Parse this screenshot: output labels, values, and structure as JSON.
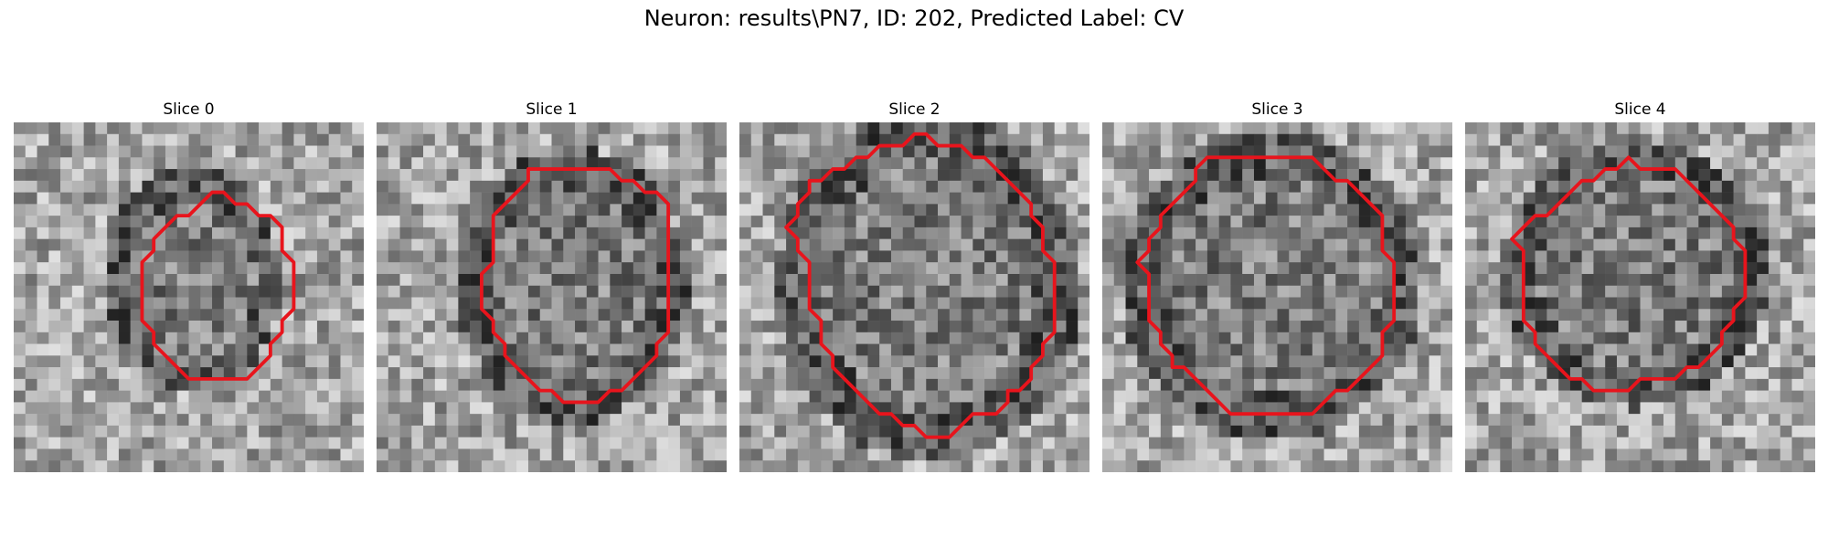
{
  "figure": {
    "title": "Neuron: results\\PN7, ID: 202, Predicted Label: CV",
    "contour_color": "#e8141c"
  },
  "panels": [
    {
      "title": "Slice 0",
      "contour": [
        [
          17,
          6
        ],
        [
          18,
          6
        ],
        [
          19,
          7
        ],
        [
          20,
          7
        ],
        [
          21,
          8
        ],
        [
          22,
          8
        ],
        [
          23,
          9
        ],
        [
          23,
          10
        ],
        [
          23,
          11
        ],
        [
          24,
          12
        ],
        [
          24,
          13
        ],
        [
          24,
          14
        ],
        [
          24,
          15
        ],
        [
          24,
          16
        ],
        [
          23,
          17
        ],
        [
          23,
          18
        ],
        [
          22,
          19
        ],
        [
          22,
          20
        ],
        [
          21,
          21
        ],
        [
          20,
          22
        ],
        [
          19,
          22
        ],
        [
          18,
          22
        ],
        [
          17,
          22
        ],
        [
          16,
          22
        ],
        [
          15,
          22
        ],
        [
          14,
          21
        ],
        [
          13,
          20
        ],
        [
          12,
          19
        ],
        [
          12,
          18
        ],
        [
          11,
          17
        ],
        [
          11,
          16
        ],
        [
          11,
          15
        ],
        [
          11,
          14
        ],
        [
          11,
          13
        ],
        [
          11,
          12
        ],
        [
          12,
          11
        ],
        [
          12,
          10
        ],
        [
          13,
          9
        ],
        [
          14,
          8
        ],
        [
          15,
          8
        ],
        [
          16,
          7
        ]
      ]
    },
    {
      "title": "Slice 1",
      "contour": [
        [
          13,
          4
        ],
        [
          14,
          4
        ],
        [
          15,
          4
        ],
        [
          16,
          4
        ],
        [
          17,
          4
        ],
        [
          18,
          4
        ],
        [
          19,
          4
        ],
        [
          20,
          4
        ],
        [
          21,
          5
        ],
        [
          22,
          5
        ],
        [
          23,
          6
        ],
        [
          24,
          6
        ],
        [
          25,
          7
        ],
        [
          25,
          8
        ],
        [
          25,
          9
        ],
        [
          25,
          10
        ],
        [
          25,
          11
        ],
        [
          25,
          12
        ],
        [
          25,
          13
        ],
        [
          25,
          14
        ],
        [
          25,
          15
        ],
        [
          25,
          16
        ],
        [
          25,
          17
        ],
        [
          25,
          18
        ],
        [
          24,
          19
        ],
        [
          24,
          20
        ],
        [
          23,
          21
        ],
        [
          22,
          22
        ],
        [
          21,
          23
        ],
        [
          20,
          23
        ],
        [
          19,
          24
        ],
        [
          18,
          24
        ],
        [
          17,
          24
        ],
        [
          16,
          24
        ],
        [
          15,
          23
        ],
        [
          14,
          23
        ],
        [
          13,
          22
        ],
        [
          12,
          21
        ],
        [
          11,
          20
        ],
        [
          11,
          19
        ],
        [
          10,
          18
        ],
        [
          10,
          17
        ],
        [
          9,
          16
        ],
        [
          9,
          15
        ],
        [
          9,
          14
        ],
        [
          9,
          13
        ],
        [
          10,
          12
        ],
        [
          10,
          11
        ],
        [
          10,
          10
        ],
        [
          10,
          9
        ],
        [
          10,
          8
        ],
        [
          11,
          7
        ],
        [
          12,
          6
        ],
        [
          13,
          5
        ]
      ]
    },
    {
      "title": "Slice 2",
      "contour": [
        [
          15,
          1
        ],
        [
          16,
          1
        ],
        [
          17,
          2
        ],
        [
          18,
          2
        ],
        [
          19,
          2
        ],
        [
          20,
          3
        ],
        [
          21,
          3
        ],
        [
          22,
          4
        ],
        [
          23,
          5
        ],
        [
          24,
          6
        ],
        [
          25,
          7
        ],
        [
          25,
          8
        ],
        [
          26,
          9
        ],
        [
          26,
          10
        ],
        [
          26,
          11
        ],
        [
          27,
          12
        ],
        [
          27,
          13
        ],
        [
          27,
          14
        ],
        [
          27,
          15
        ],
        [
          27,
          16
        ],
        [
          27,
          17
        ],
        [
          27,
          18
        ],
        [
          26,
          19
        ],
        [
          26,
          20
        ],
        [
          25,
          21
        ],
        [
          25,
          22
        ],
        [
          24,
          23
        ],
        [
          23,
          23
        ],
        [
          23,
          24
        ],
        [
          22,
          25
        ],
        [
          21,
          25
        ],
        [
          20,
          25
        ],
        [
          19,
          26
        ],
        [
          18,
          27
        ],
        [
          17,
          27
        ],
        [
          16,
          27
        ],
        [
          15,
          26
        ],
        [
          14,
          26
        ],
        [
          13,
          25
        ],
        [
          12,
          25
        ],
        [
          11,
          24
        ],
        [
          10,
          23
        ],
        [
          9,
          22
        ],
        [
          8,
          21
        ],
        [
          8,
          20
        ],
        [
          7,
          19
        ],
        [
          7,
          18
        ],
        [
          7,
          17
        ],
        [
          6,
          16
        ],
        [
          6,
          15
        ],
        [
          6,
          14
        ],
        [
          6,
          13
        ],
        [
          6,
          12
        ],
        [
          5,
          11
        ],
        [
          5,
          10
        ],
        [
          4,
          9
        ],
        [
          5,
          8
        ],
        [
          5,
          7
        ],
        [
          6,
          6
        ],
        [
          6,
          5
        ],
        [
          7,
          5
        ],
        [
          8,
          4
        ],
        [
          9,
          4
        ],
        [
          10,
          3
        ],
        [
          11,
          3
        ],
        [
          12,
          2
        ],
        [
          13,
          2
        ],
        [
          14,
          2
        ]
      ]
    },
    {
      "title": "Slice 3",
      "contour": [
        [
          9,
          3
        ],
        [
          10,
          3
        ],
        [
          11,
          3
        ],
        [
          12,
          3
        ],
        [
          13,
          3
        ],
        [
          14,
          3
        ],
        [
          15,
          3
        ],
        [
          16,
          3
        ],
        [
          17,
          3
        ],
        [
          18,
          3
        ],
        [
          19,
          4
        ],
        [
          20,
          5
        ],
        [
          21,
          5
        ],
        [
          22,
          6
        ],
        [
          23,
          7
        ],
        [
          24,
          8
        ],
        [
          24,
          9
        ],
        [
          24,
          10
        ],
        [
          24,
          11
        ],
        [
          25,
          12
        ],
        [
          25,
          13
        ],
        [
          25,
          14
        ],
        [
          25,
          15
        ],
        [
          25,
          16
        ],
        [
          25,
          17
        ],
        [
          24,
          18
        ],
        [
          24,
          19
        ],
        [
          24,
          20
        ],
        [
          23,
          21
        ],
        [
          22,
          22
        ],
        [
          21,
          23
        ],
        [
          20,
          23
        ],
        [
          19,
          24
        ],
        [
          18,
          25
        ],
        [
          17,
          25
        ],
        [
          16,
          25
        ],
        [
          15,
          25
        ],
        [
          14,
          25
        ],
        [
          13,
          25
        ],
        [
          12,
          25
        ],
        [
          11,
          25
        ],
        [
          10,
          24
        ],
        [
          9,
          23
        ],
        [
          8,
          22
        ],
        [
          7,
          21
        ],
        [
          6,
          21
        ],
        [
          6,
          20
        ],
        [
          5,
          19
        ],
        [
          5,
          18
        ],
        [
          4,
          17
        ],
        [
          4,
          16
        ],
        [
          4,
          15
        ],
        [
          4,
          14
        ],
        [
          4,
          13
        ],
        [
          3,
          12
        ],
        [
          4,
          11
        ],
        [
          4,
          10
        ],
        [
          5,
          9
        ],
        [
          5,
          8
        ],
        [
          6,
          7
        ],
        [
          7,
          6
        ],
        [
          8,
          5
        ],
        [
          8,
          4
        ]
      ]
    },
    {
      "title": "Slice 4",
      "contour": [
        [
          15,
          4
        ],
        [
          16,
          4
        ],
        [
          17,
          4
        ],
        [
          18,
          4
        ],
        [
          19,
          5
        ],
        [
          20,
          6
        ],
        [
          21,
          7
        ],
        [
          22,
          8
        ],
        [
          23,
          9
        ],
        [
          23,
          10
        ],
        [
          24,
          11
        ],
        [
          24,
          12
        ],
        [
          24,
          13
        ],
        [
          24,
          14
        ],
        [
          24,
          15
        ],
        [
          23,
          16
        ],
        [
          23,
          17
        ],
        [
          22,
          18
        ],
        [
          22,
          19
        ],
        [
          21,
          20
        ],
        [
          20,
          21
        ],
        [
          19,
          21
        ],
        [
          18,
          22
        ],
        [
          17,
          22
        ],
        [
          16,
          22
        ],
        [
          15,
          22
        ],
        [
          14,
          23
        ],
        [
          13,
          23
        ],
        [
          12,
          23
        ],
        [
          11,
          23
        ],
        [
          10,
          22
        ],
        [
          9,
          22
        ],
        [
          8,
          21
        ],
        [
          7,
          20
        ],
        [
          6,
          19
        ],
        [
          6,
          18
        ],
        [
          5,
          17
        ],
        [
          5,
          16
        ],
        [
          5,
          15
        ],
        [
          5,
          14
        ],
        [
          5,
          13
        ],
        [
          5,
          12
        ],
        [
          5,
          11
        ],
        [
          4,
          10
        ],
        [
          5,
          9
        ],
        [
          6,
          8
        ],
        [
          7,
          8
        ],
        [
          8,
          7
        ],
        [
          9,
          6
        ],
        [
          10,
          5
        ],
        [
          11,
          5
        ],
        [
          12,
          4
        ],
        [
          13,
          4
        ],
        [
          14,
          3
        ]
      ]
    }
  ]
}
